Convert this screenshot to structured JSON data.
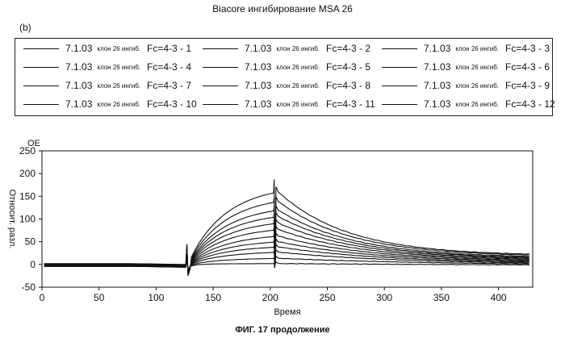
{
  "header": {
    "title": "Biacore ингибирование MSA 26",
    "panel_label": "(b)"
  },
  "caption": "ФИГ. 17 продолжение",
  "chart_data": {
    "type": "line",
    "title": "Biacore ингибирование MSA 26",
    "xlabel": "Время",
    "ylabel": "Относит. разл.",
    "yunit": "ОЕ",
    "xlim": [
      0,
      430
    ],
    "ylim": [
      -50,
      250
    ],
    "xticks": [
      0,
      50,
      100,
      150,
      200,
      250,
      300,
      350,
      400
    ],
    "yticks": [
      -50,
      0,
      50,
      100,
      150,
      200,
      250
    ],
    "grid": false,
    "legend_position": "top",
    "injection_start": 127,
    "injection_end": 204,
    "series": [
      {
        "name": "7.1.03 клон 26 ингиб. Fc=4-3 - 1",
        "plateau": 167,
        "end": 19
      },
      {
        "name": "7.1.03 клон 26 ингиб. Fc=4-3 - 2",
        "plateau": 145,
        "end": 17
      },
      {
        "name": "7.1.03 клон 26 ингиб. Fc=4-3 - 3",
        "plateau": 125,
        "end": 14
      },
      {
        "name": "7.1.03 клон 26 ингиб. Fc=4-3 - 4",
        "plateau": 110,
        "end": 12
      },
      {
        "name": "7.1.03 клон 26 ингиб. Fc=4-3 - 5",
        "plateau": 95,
        "end": 10
      },
      {
        "name": "7.1.03 клон 26 ингиб. Fc=4-3 - 6",
        "plateau": 80,
        "end": 8
      },
      {
        "name": "7.1.03 клон 26 ингиб. Fc=4-3 - 7",
        "plateau": 65,
        "end": 6
      },
      {
        "name": "7.1.03 клон 26 ингиб. Fc=4-3 - 8",
        "plateau": 52,
        "end": 4
      },
      {
        "name": "7.1.03 клон 26 ингиб. Fc=4-3 - 9",
        "plateau": 40,
        "end": 2
      },
      {
        "name": "7.1.03 клон 26 ингиб. Fc=4-3 - 10",
        "plateau": 28,
        "end": 0
      },
      {
        "name": "7.1.03 клон 26 ингиб. Fc=4-3 - 11",
        "plateau": 14,
        "end": -2
      },
      {
        "name": "7.1.03 клон 26 ингиб. Fc=4-3 - 12",
        "plateau": 2,
        "end": -4
      }
    ]
  }
}
